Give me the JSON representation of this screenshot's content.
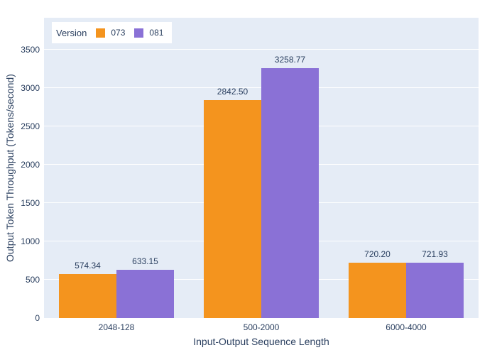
{
  "colors": {
    "paper_background": "#ffffff",
    "plot_background": "#e5ecf6",
    "gridline": "#ffffff",
    "text": "#2a3f5f",
    "series_073": "#f4941e",
    "series_081": "#8a71d6"
  },
  "legend": {
    "title": "Version",
    "items": [
      {
        "label": "073",
        "color": "#f4941e"
      },
      {
        "label": "081",
        "color": "#8a71d6"
      }
    ]
  },
  "chart_data": {
    "type": "bar",
    "title": "",
    "xlabel": "Input-Output Sequence Length",
    "ylabel": "Output Token Throughput (Tokens/second)",
    "categories": [
      "2048-128",
      "500-2000",
      "6000-4000"
    ],
    "series": [
      {
        "name": "073",
        "color": "#f4941e",
        "values": [
          574.34,
          2842.5,
          720.2
        ],
        "labels": [
          "574.34",
          "2842.50",
          "720.20"
        ]
      },
      {
        "name": "081",
        "color": "#8a71d6",
        "values": [
          633.15,
          3258.77,
          721.93
        ],
        "labels": [
          "633.15",
          "3258.77",
          "721.93"
        ]
      }
    ],
    "yticks": [
      0,
      500,
      1000,
      1500,
      2000,
      2500,
      3000,
      3500
    ],
    "ylim": [
      0,
      3916
    ],
    "grid": "horizontal-only",
    "legend_position": "top-left-inside",
    "bar_value_labels": "outside-top"
  }
}
